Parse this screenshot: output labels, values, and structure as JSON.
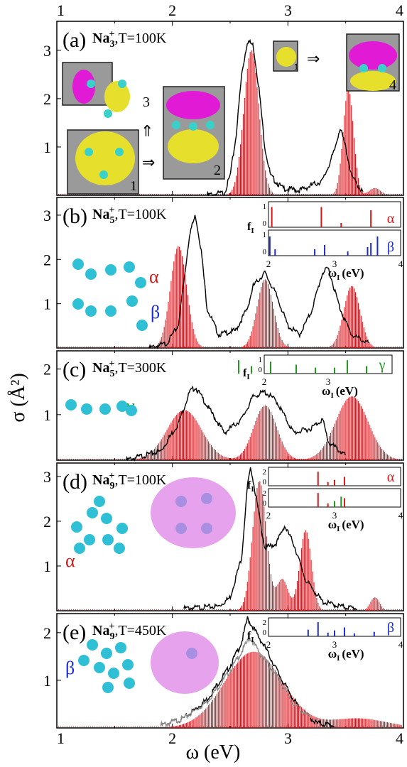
{
  "figure": {
    "ylabel": "σ (Å²)",
    "xlabel": "ω (eV)",
    "x_ticks": [
      "1",
      "2",
      "3",
      "4"
    ]
  },
  "chart_data": [
    {
      "type": "bar",
      "panel_label": "(a)",
      "species": "Na",
      "sub": "3",
      "sup": "+",
      "temp": ",T=100K",
      "xlim": [
        1,
        4
      ],
      "ylim": [
        0,
        3.6
      ],
      "y_ticks": [
        "1",
        "2",
        "3"
      ],
      "experiment": [
        [
          2.3,
          0
        ],
        [
          2.45,
          0.05
        ],
        [
          2.5,
          0.4
        ],
        [
          2.55,
          1.2
        ],
        [
          2.6,
          2.5
        ],
        [
          2.65,
          3.2
        ],
        [
          2.7,
          3.1
        ],
        [
          2.75,
          2.2
        ],
        [
          2.8,
          1.0
        ],
        [
          2.85,
          0.4
        ],
        [
          2.95,
          0.15
        ],
        [
          3.1,
          0.1
        ],
        [
          3.3,
          0.3
        ],
        [
          3.4,
          0.9
        ],
        [
          3.45,
          1.4
        ],
        [
          3.5,
          1.0
        ],
        [
          3.55,
          0.4
        ],
        [
          3.65,
          0.05
        ]
      ],
      "theory_peaks": [
        {
          "center": 2.68,
          "amp": 3.0,
          "width": 0.065
        },
        {
          "center": 3.52,
          "amp": 2.2,
          "width": 0.045
        },
        {
          "center": 3.75,
          "amp": 0.15,
          "width": 0.05
        }
      ],
      "orbital_labels": [
        "3",
        "1",
        "2",
        "1",
        "4"
      ]
    },
    {
      "type": "bar",
      "panel_label": "(b)",
      "species": "Na",
      "sub": "5",
      "sup": "+",
      "temp": ",T=100K",
      "xlim": [
        1,
        4
      ],
      "ylim": [
        0,
        3.4
      ],
      "y_ticks": [
        "1",
        "2",
        "3"
      ],
      "experiment": [
        [
          1.8,
          0
        ],
        [
          1.95,
          0.1
        ],
        [
          2.05,
          0.5
        ],
        [
          2.1,
          1.5
        ],
        [
          2.15,
          2.6
        ],
        [
          2.2,
          3.0
        ],
        [
          2.25,
          2.2
        ],
        [
          2.3,
          0.9
        ],
        [
          2.4,
          0.3
        ],
        [
          2.55,
          0.4
        ],
        [
          2.65,
          0.9
        ],
        [
          2.7,
          1.4
        ],
        [
          2.8,
          1.7
        ],
        [
          2.9,
          1.2
        ],
        [
          3.0,
          0.5
        ],
        [
          3.1,
          0.3
        ],
        [
          3.2,
          0.8
        ],
        [
          3.3,
          1.7
        ],
        [
          3.35,
          1.8
        ],
        [
          3.45,
          0.9
        ],
        [
          3.55,
          0.3
        ],
        [
          3.7,
          0.1
        ]
      ],
      "theory_peaks": [
        {
          "center": 2.05,
          "amp": 2.3,
          "width": 0.07
        },
        {
          "center": 2.8,
          "amp": 1.55,
          "width": 0.07
        },
        {
          "center": 3.55,
          "amp": 1.4,
          "width": 0.07
        }
      ],
      "isomer_labels": [
        "α",
        "β"
      ],
      "inset": {
        "ylabel": "f",
        "ylabel_sub": "I",
        "xlabel": "ω",
        "xlabel_sub": "I",
        "xlabel_unit": "(eV)",
        "ticks": [
          "2",
          "3",
          "4"
        ],
        "y_ticks": [
          "0",
          "1"
        ],
        "rows": [
          {
            "isomer": "α",
            "color": "#d21a1a",
            "lines": [
              [
                2.05,
                0.95
              ],
              [
                2.8,
                0.95
              ],
              [
                3.1,
                0.2
              ],
              [
                3.55,
                0.8
              ]
            ]
          },
          {
            "isomer": "β",
            "color": "#1a2bd0",
            "lines": [
              [
                2.02,
                0.9
              ],
              [
                2.1,
                0.3
              ],
              [
                2.7,
                0.3
              ],
              [
                2.85,
                0.5
              ],
              [
                3.2,
                0.2
              ],
              [
                3.5,
                0.4
              ],
              [
                3.55,
                0.6
              ],
              [
                3.65,
                0.9
              ]
            ]
          }
        ]
      }
    },
    {
      "type": "bar",
      "panel_label": "(c)",
      "species": "Na",
      "sub": "5",
      "sup": "+",
      "temp": ",T=300K",
      "xlim": [
        1,
        4
      ],
      "ylim": [
        0,
        2.4
      ],
      "y_ticks": [
        "1",
        "2"
      ],
      "experiment": [
        [
          1.6,
          0
        ],
        [
          1.9,
          0.2
        ],
        [
          2.05,
          0.8
        ],
        [
          2.15,
          1.5
        ],
        [
          2.2,
          1.6
        ],
        [
          2.3,
          1.2
        ],
        [
          2.45,
          0.6
        ],
        [
          2.6,
          0.9
        ],
        [
          2.7,
          1.4
        ],
        [
          2.8,
          1.5
        ],
        [
          2.9,
          1.3
        ],
        [
          3.05,
          0.6
        ],
        [
          3.2,
          0.7
        ],
        [
          3.3,
          0.9
        ],
        [
          3.35,
          0.4
        ],
        [
          3.5,
          0.1
        ]
      ],
      "theory_peaks": [
        {
          "center": 2.1,
          "amp": 1.1,
          "width": 0.15
        },
        {
          "center": 2.8,
          "amp": 1.2,
          "width": 0.1
        },
        {
          "center": 3.55,
          "amp": 1.4,
          "width": 0.14
        }
      ],
      "isomer_labels": [
        "γ"
      ],
      "inset": {
        "ylabel": "f",
        "ylabel_sub": "I",
        "xlabel": "ω",
        "xlabel_sub": "I",
        "xlabel_unit": "(eV)",
        "ticks": [
          "2",
          "3"
        ],
        "y_ticks": [
          "0",
          "1"
        ],
        "rows": [
          {
            "isomer": "γ",
            "color": "#1f9a1f",
            "lines": [
              [
                1.6,
                0.9
              ],
              [
                1.8,
                0.5
              ],
              [
                2.1,
                0.8
              ],
              [
                2.5,
                0.6
              ],
              [
                2.8,
                0.4
              ],
              [
                3.1,
                0.4
              ],
              [
                3.3,
                0.9
              ],
              [
                3.6,
                0.5
              ]
            ]
          }
        ]
      }
    },
    {
      "type": "bar",
      "panel_label": "(d)",
      "species": "Na",
      "sub": "9",
      "sup": "+",
      "temp": ",T=100K",
      "xlim": [
        1,
        4
      ],
      "ylim": [
        0,
        3.3
      ],
      "y_ticks": [
        "1",
        "2",
        "3"
      ],
      "experiment": [
        [
          2.1,
          0.05
        ],
        [
          2.4,
          0.1
        ],
        [
          2.5,
          0.3
        ],
        [
          2.6,
          1.2
        ],
        [
          2.65,
          2.8
        ],
        [
          2.68,
          3.2
        ],
        [
          2.72,
          2.6
        ],
        [
          2.8,
          1.4
        ],
        [
          2.9,
          1.5
        ],
        [
          2.97,
          1.9
        ],
        [
          3.05,
          1.5
        ],
        [
          3.15,
          0.7
        ],
        [
          3.3,
          0.2
        ],
        [
          3.45,
          0.1
        ],
        [
          3.6,
          0.05
        ]
      ],
      "theory_peaks": [
        {
          "center": 2.75,
          "amp": 2.9,
          "width": 0.06
        },
        {
          "center": 3.15,
          "amp": 1.8,
          "width": 0.05
        },
        {
          "center": 2.95,
          "amp": 0.7,
          "width": 0.05
        },
        {
          "center": 3.75,
          "amp": 0.3,
          "width": 0.04
        }
      ],
      "isomer_labels": [
        "α"
      ],
      "inset": {
        "ylabel": "f",
        "ylabel_sub": "I",
        "xlabel": "ω",
        "xlabel_sub": "I",
        "xlabel_unit": "(eV)",
        "ticks": [
          "2",
          "3",
          "4"
        ],
        "y_ticks": [
          "0",
          "2"
        ],
        "rows": [
          {
            "isomer": "α",
            "color": "#d21a1a",
            "lines": [
              [
                2.75,
                1.9
              ],
              [
                2.9,
                0.5
              ],
              [
                3.0,
                0.8
              ],
              [
                3.15,
                1.2
              ]
            ]
          },
          {
            "isomer": "",
            "color": "#d21a1a",
            "lines": [
              [
                2.75,
                1.9
              ],
              [
                2.9,
                0.5
              ],
              [
                3.15,
                1.2
              ]
            ],
            "green_lines": [
              [
                3.0,
                0.8
              ],
              [
                3.1,
                1.4
              ]
            ]
          }
        ]
      }
    },
    {
      "type": "bar",
      "panel_label": "(e)",
      "species": "Na",
      "sub": "9",
      "sup": "+",
      "temp": ",T=450K",
      "xlim": [
        1,
        4
      ],
      "ylim": [
        0,
        2.4
      ],
      "y_ticks": [
        "1",
        "2"
      ],
      "experiment": [
        [
          1.9,
          0.05
        ],
        [
          2.1,
          0.2
        ],
        [
          2.3,
          0.6
        ],
        [
          2.5,
          1.3
        ],
        [
          2.6,
          1.8
        ],
        [
          2.65,
          2.3
        ],
        [
          2.7,
          2.1
        ],
        [
          2.8,
          1.7
        ],
        [
          2.95,
          1.0
        ],
        [
          3.1,
          0.4
        ],
        [
          3.25,
          0.1
        ],
        [
          3.4,
          0.05
        ]
      ],
      "experiment2": [
        [
          1.9,
          0.05
        ],
        [
          2.1,
          0.2
        ],
        [
          2.3,
          0.55
        ],
        [
          2.5,
          1.2
        ],
        [
          2.6,
          1.6
        ],
        [
          2.67,
          1.9
        ],
        [
          2.75,
          1.6
        ],
        [
          2.9,
          1.1
        ],
        [
          3.05,
          0.5
        ],
        [
          3.2,
          0.2
        ]
      ],
      "theory_peaks": [
        {
          "center": 2.7,
          "amp": 1.6,
          "width": 0.25
        },
        {
          "center": 3.6,
          "amp": 0.2,
          "width": 0.25
        }
      ],
      "isomer_labels": [
        "β"
      ],
      "inset": {
        "ylabel": "f",
        "ylabel_sub": "I",
        "xlabel": "ω",
        "xlabel_sub": "I",
        "xlabel_unit": "(eV)",
        "ticks": [
          "2",
          "3",
          "4"
        ],
        "y_ticks": [
          "0",
          "2"
        ],
        "rows": [
          {
            "isomer": "β",
            "color": "#1a2bd0",
            "lines": [
              [
                2.6,
                0.9
              ],
              [
                2.75,
                1.9
              ],
              [
                2.9,
                0.5
              ],
              [
                3.0,
                0.8
              ],
              [
                3.15,
                1.2
              ],
              [
                3.3,
                0.4
              ],
              [
                3.6,
                0.6
              ]
            ]
          }
        ]
      }
    }
  ]
}
